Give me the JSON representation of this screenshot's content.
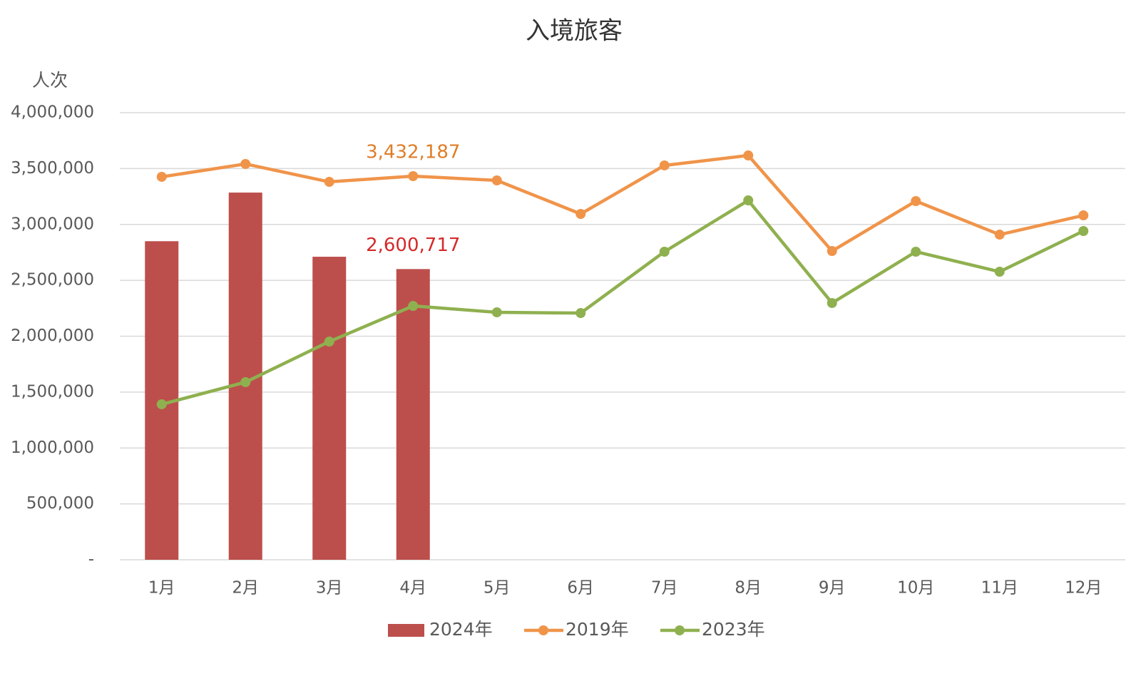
{
  "chart_data": {
    "type": "combo",
    "title": "入境旅客",
    "y_label": "人次",
    "categories": [
      "1月",
      "2月",
      "3月",
      "4月",
      "5月",
      "6月",
      "7月",
      "8月",
      "9月",
      "10月",
      "11月",
      "12月"
    ],
    "series": [
      {
        "name": "2024年",
        "type": "bar",
        "color": "#bc4f4c",
        "label_color": "#d42a2a",
        "values": [
          2850000,
          3285000,
          2711000,
          2600717,
          null,
          null,
          null,
          null,
          null,
          null,
          null,
          null
        ],
        "value_labels": [
          null,
          null,
          null,
          "2,600,717",
          null,
          null,
          null,
          null,
          null,
          null,
          null,
          null
        ]
      },
      {
        "name": "2019年",
        "type": "line",
        "color": "#f0944a",
        "label_color": "#e07d28",
        "values": [
          3426000,
          3541000,
          3381000,
          3432187,
          3394000,
          3094000,
          3528000,
          3617000,
          2762000,
          3209000,
          2909000,
          3081000
        ],
        "value_labels": [
          null,
          null,
          null,
          "3,432,187",
          null,
          null,
          null,
          null,
          null,
          null,
          null,
          null
        ]
      },
      {
        "name": "2023年",
        "type": "line",
        "color": "#8fb04f",
        "values": [
          1391000,
          1589000,
          1952000,
          2271000,
          2214000,
          2207000,
          2756000,
          3215000,
          2297000,
          2756000,
          2577000,
          2941000
        ]
      }
    ],
    "ylim": [
      0,
      4000000
    ],
    "yticks": [
      {
        "value": 0,
        "label": "-"
      },
      {
        "value": 500000,
        "label": "500,000"
      },
      {
        "value": 1000000,
        "label": "1,000,000"
      },
      {
        "value": 1500000,
        "label": "1,500,000"
      },
      {
        "value": 2000000,
        "label": "2,000,000"
      },
      {
        "value": 2500000,
        "label": "2,500,000"
      },
      {
        "value": 3000000,
        "label": "3,000,000"
      },
      {
        "value": 3500000,
        "label": "3,500,000"
      },
      {
        "value": 4000000,
        "label": "4,000,000"
      }
    ],
    "grid": true,
    "legend": "bottom"
  }
}
